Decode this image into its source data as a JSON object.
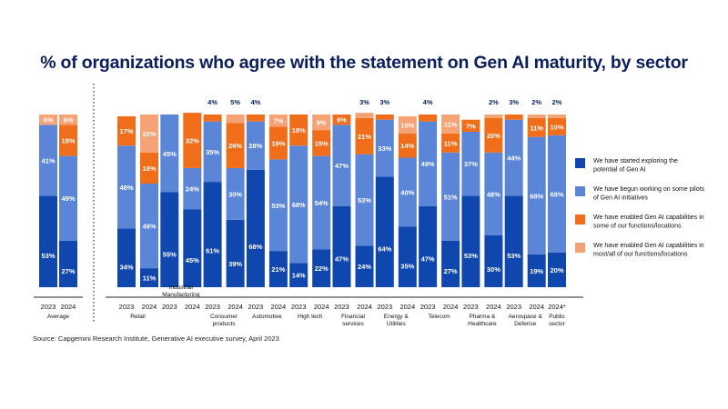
{
  "chart_data": {
    "type": "bar",
    "stacked": true,
    "title": "% of organizations who agree with the statement on Gen AI maturity, by sector",
    "source": "Source: Capgemini Research Institute, Generative AI executive survey, April 2023",
    "legend_position": "right",
    "ylim": [
      0,
      100
    ],
    "series": [
      {
        "name": "We have started exploring the potential of Gen AI",
        "color": "#0f47af"
      },
      {
        "name": "We have begun working on some pilots of Gen AI initiatives",
        "color": "#5b86d8"
      },
      {
        "name": "We have enabled Gen AI capabilities in some of our functions/locations",
        "color": "#f06d1a"
      },
      {
        "name": "We have enabled Gen AI capabilities in most/all of our functions/locations",
        "color": "#f5a274"
      }
    ],
    "groups": [
      {
        "name": "Average",
        "bars": [
          {
            "year": "2023",
            "values": [
              53,
              41,
              0,
              6
            ]
          },
          {
            "year": "2024",
            "values": [
              27,
              49,
              18,
              6
            ]
          }
        ]
      },
      {
        "name": "Retail",
        "bars": [
          {
            "year": "2023",
            "values": [
              34,
              48,
              17,
              0
            ]
          },
          {
            "year": "2024",
            "values": [
              11,
              49,
              18,
              22
            ]
          }
        ]
      },
      {
        "name": "Industrial Manufacturing",
        "bars": [
          {
            "year": "2023",
            "values": [
              55,
              45,
              0,
              0
            ]
          },
          {
            "year": "2024",
            "values": [
              45,
              24,
              32,
              0
            ]
          }
        ]
      },
      {
        "name": "Consumer products",
        "bars": [
          {
            "year": "2023",
            "values": [
              61,
              35,
              4,
              0
            ]
          },
          {
            "year": "2024",
            "values": [
              39,
              30,
              26,
              5
            ]
          }
        ]
      },
      {
        "name": "Automotive",
        "bars": [
          {
            "year": "2023",
            "values": [
              68,
              28,
              4,
              0
            ]
          },
          {
            "year": "2024",
            "values": [
              21,
              53,
              19,
              7
            ]
          }
        ]
      },
      {
        "name": "High tech",
        "bars": [
          {
            "year": "2023",
            "values": [
              14,
              68,
              18,
              0
            ]
          },
          {
            "year": "2024",
            "values": [
              22,
              54,
              15,
              9
            ]
          }
        ]
      },
      {
        "name": "Financial services",
        "bars": [
          {
            "year": "2023",
            "values": [
              47,
              47,
              6,
              0
            ]
          },
          {
            "year": "2024",
            "values": [
              24,
              53,
              21,
              3
            ]
          }
        ]
      },
      {
        "name": "Energy & Utilities",
        "bars": [
          {
            "year": "2023",
            "values": [
              64,
              33,
              3,
              0
            ]
          },
          {
            "year": "2024",
            "values": [
              35,
              40,
              14,
              10
            ]
          }
        ]
      },
      {
        "name": "Telecom",
        "bars": [
          {
            "year": "2023",
            "values": [
              47,
              49,
              4,
              0
            ]
          },
          {
            "year": "2024",
            "values": [
              27,
              51,
              11,
              11
            ]
          }
        ]
      },
      {
        "name": "Pharma & Healthcare",
        "bars": [
          {
            "year": "2023",
            "values": [
              53,
              37,
              7,
              0
            ]
          },
          {
            "year": "2024",
            "values": [
              30,
              48,
              20,
              2
            ]
          }
        ]
      },
      {
        "name": "Aerospace & Defense",
        "bars": [
          {
            "year": "2023",
            "values": [
              53,
              44,
              3,
              0
            ]
          },
          {
            "year": "2024",
            "values": [
              19,
              68,
              11,
              2
            ]
          }
        ]
      },
      {
        "name": "Public sector",
        "bars": [
          {
            "year": "2024*",
            "values": [
              20,
              68,
              10,
              2
            ]
          }
        ]
      }
    ]
  }
}
